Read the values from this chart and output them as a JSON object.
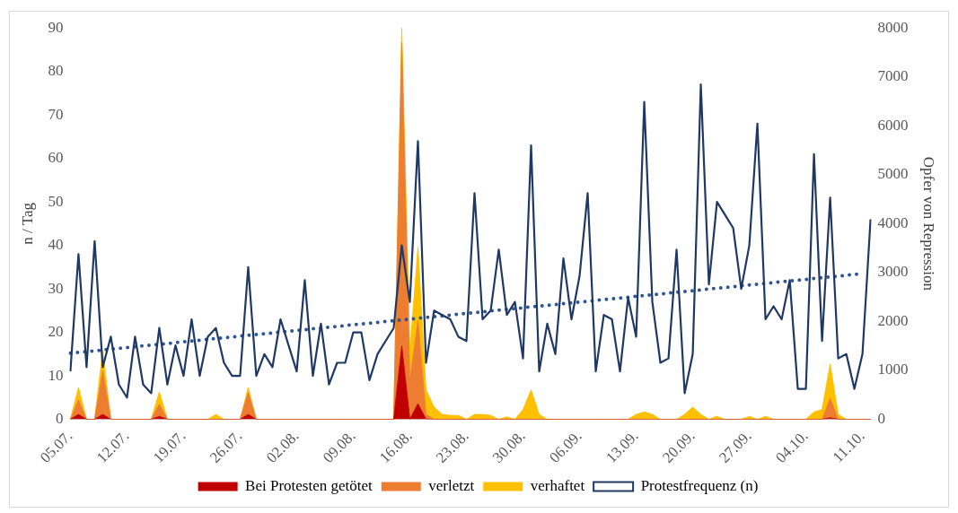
{
  "chart_data": {
    "type": "line",
    "ylabel": "n / Tag",
    "y2label": "Opfer von Repression",
    "categories": [
      "05.07.",
      null,
      null,
      null,
      null,
      null,
      null,
      "12.07.",
      null,
      null,
      null,
      null,
      null,
      null,
      "19.07.",
      null,
      null,
      null,
      null,
      null,
      null,
      "26.07.",
      null,
      null,
      null,
      null,
      null,
      null,
      "02.08.",
      null,
      null,
      null,
      null,
      null,
      null,
      "09.08.",
      null,
      null,
      null,
      null,
      null,
      null,
      "16.08.",
      null,
      null,
      null,
      null,
      null,
      null,
      "23.08.",
      null,
      null,
      null,
      null,
      null,
      null,
      "30.08.",
      null,
      null,
      null,
      null,
      null,
      null,
      "06.09.",
      null,
      null,
      null,
      null,
      null,
      null,
      "13.09.",
      null,
      null,
      null,
      null,
      null,
      null,
      "20.09.",
      null,
      null,
      null,
      null,
      null,
      null,
      "27.09.",
      null,
      null,
      null,
      null,
      null,
      null,
      "04.10.",
      null,
      null,
      null,
      null,
      null,
      null,
      "11.10.",
      null
    ],
    "stacked": true,
    "series": [
      {
        "name": "Bei Protesten getötet",
        "type": "area",
        "axis": "y2",
        "color": "#c00000",
        "values": [
          0,
          100,
          0,
          0,
          100,
          0,
          0,
          0,
          0,
          0,
          0,
          60,
          0,
          0,
          0,
          0,
          0,
          0,
          0,
          0,
          0,
          0,
          100,
          0,
          0,
          0,
          0,
          0,
          0,
          0,
          0,
          0,
          0,
          0,
          0,
          0,
          0,
          0,
          0,
          0,
          0,
          1500,
          0,
          320,
          0,
          0,
          0,
          0,
          0,
          0,
          0,
          0,
          0,
          0,
          0,
          0,
          0,
          0,
          0,
          0,
          0,
          0,
          0,
          0,
          0,
          0,
          0,
          0,
          0,
          0,
          0,
          0,
          0,
          0,
          0,
          0,
          0,
          0,
          0,
          0,
          0,
          0,
          0,
          0,
          0,
          0,
          0,
          0,
          0,
          0,
          0,
          0,
          0,
          0,
          30,
          0,
          0,
          0,
          0,
          0
        ]
      },
      {
        "name": "verletzt",
        "type": "area",
        "axis": "y2",
        "color": "#ed7d31",
        "values": [
          0,
          300,
          0,
          0,
          900,
          0,
          0,
          0,
          0,
          0,
          0,
          250,
          0,
          0,
          0,
          0,
          0,
          0,
          0,
          0,
          0,
          0,
          450,
          0,
          0,
          0,
          0,
          0,
          0,
          0,
          0,
          0,
          0,
          0,
          0,
          0,
          0,
          0,
          0,
          0,
          0,
          6200,
          800,
          1700,
          100,
          0,
          0,
          0,
          0,
          0,
          0,
          0,
          0,
          0,
          0,
          0,
          0,
          0,
          0,
          0,
          0,
          0,
          0,
          0,
          0,
          0,
          0,
          0,
          0,
          0,
          0,
          0,
          0,
          0,
          0,
          0,
          0,
          0,
          0,
          0,
          0,
          0,
          0,
          0,
          0,
          0,
          0,
          0,
          0,
          0,
          0,
          0,
          0,
          0,
          400,
          0,
          0,
          0,
          0,
          0
        ]
      },
      {
        "name": "verhaftet",
        "type": "area",
        "axis": "y2",
        "color": "#ffc000",
        "values": [
          0,
          250,
          0,
          0,
          400,
          0,
          0,
          0,
          0,
          0,
          0,
          250,
          0,
          0,
          0,
          0,
          0,
          0,
          100,
          0,
          0,
          0,
          100,
          0,
          0,
          0,
          0,
          0,
          0,
          0,
          0,
          0,
          0,
          0,
          0,
          0,
          0,
          0,
          0,
          0,
          0,
          300,
          600,
          1500,
          500,
          250,
          100,
          80,
          80,
          0,
          100,
          100,
          80,
          0,
          50,
          0,
          200,
          600,
          100,
          0,
          0,
          0,
          0,
          0,
          0,
          0,
          0,
          0,
          0,
          0,
          100,
          150,
          100,
          0,
          0,
          0,
          100,
          250,
          100,
          0,
          60,
          0,
          0,
          0,
          60,
          0,
          60,
          0,
          0,
          0,
          0,
          0,
          150,
          200,
          700,
          100,
          0,
          0,
          0,
          0
        ]
      },
      {
        "name": "Protestfrequenz (n)",
        "type": "line",
        "axis": "y",
        "color": "#1f3864",
        "values": [
          11,
          38,
          12,
          41,
          12,
          19,
          8,
          5,
          19,
          8,
          6,
          21,
          8,
          17,
          10,
          23,
          10,
          19,
          21,
          13,
          10,
          10,
          35,
          10,
          15,
          12,
          23,
          17,
          11,
          32,
          10,
          22,
          8,
          13,
          13,
          20,
          20,
          9,
          15,
          18,
          21,
          40,
          27,
          64,
          13,
          25,
          24,
          23,
          19,
          18,
          52,
          23,
          25,
          39,
          24,
          27,
          14,
          63,
          11,
          22,
          15,
          37,
          23,
          33,
          52,
          11,
          24,
          23,
          11,
          28,
          19,
          73,
          27,
          13,
          14,
          39,
          6,
          15,
          77,
          31,
          50,
          47,
          44,
          30,
          40,
          68,
          23,
          26,
          23,
          32,
          7,
          7,
          61,
          18,
          51,
          14,
          15,
          7,
          15,
          46
        ]
      },
      {
        "type": "line",
        "axis": "y",
        "color": "#2f5597",
        "line_style": "dotted",
        "x": [
          "05.07.",
          "11.10."
        ],
        "values": [
          15.2,
          33.5
        ]
      }
    ],
    "ylim": [
      0,
      90
    ],
    "yticks": [
      0,
      10,
      20,
      30,
      40,
      50,
      60,
      70,
      80,
      90
    ],
    "y2lim": [
      0,
      8000
    ],
    "y2ticks": [
      0,
      1000,
      2000,
      3000,
      4000,
      5000,
      6000,
      7000,
      8000
    ],
    "grid": false,
    "legend": "bottom",
    "marker": "none"
  }
}
